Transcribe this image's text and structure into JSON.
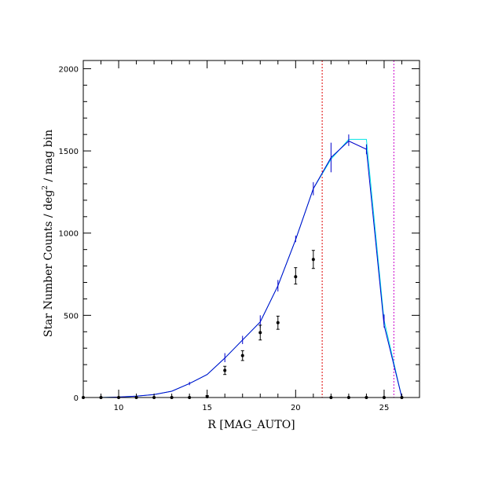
{
  "chart_data": {
    "type": "line",
    "title": "",
    "xlabel": "R [MAG_AUTO]",
    "ylabel_parts": {
      "main": "Star Number Counts / deg",
      "sup": "2",
      "tail": " / mag bin"
    },
    "xlim": [
      8,
      27
    ],
    "ylim": [
      0,
      2050
    ],
    "x_major_ticks": [
      10,
      15,
      20,
      25
    ],
    "y_major_ticks": [
      0,
      500,
      1000,
      1500,
      2000
    ],
    "x_tick_labels": [
      "10",
      "15",
      "20",
      "25"
    ],
    "y_tick_labels": [
      "0",
      "500",
      "1000",
      "1500",
      "2000"
    ],
    "grid": false,
    "series": [
      {
        "style": "line",
        "color": "#00e5e5",
        "x": [
          8,
          9,
          10,
          11,
          12,
          13,
          14,
          15,
          16,
          17,
          18,
          19,
          20,
          21,
          22,
          23,
          24,
          25,
          26
        ],
        "y": [
          0,
          0,
          3,
          8,
          18,
          38,
          85,
          140,
          240,
          350,
          460,
          680,
          960,
          1270,
          1450,
          1570,
          1570,
          470,
          0
        ]
      },
      {
        "style": "line",
        "color": "#0000cc",
        "x": [
          8,
          9,
          10,
          11,
          12,
          13,
          14,
          15,
          16,
          17,
          18,
          19,
          20,
          21,
          22,
          23,
          24,
          25,
          26
        ],
        "y": [
          0,
          0,
          3,
          8,
          18,
          38,
          85,
          140,
          240,
          350,
          460,
          680,
          960,
          1270,
          1460,
          1560,
          1510,
          440,
          0
        ]
      },
      {
        "style": "errorbars",
        "color": "#0000cc",
        "points": [
          {
            "x": 14,
            "lo": 75,
            "hi": 95
          },
          {
            "x": 16,
            "lo": 215,
            "hi": 270
          },
          {
            "x": 17,
            "lo": 325,
            "hi": 375
          },
          {
            "x": 18,
            "lo": 425,
            "hi": 500
          },
          {
            "x": 19,
            "lo": 645,
            "hi": 715
          },
          {
            "x": 20,
            "lo": 945,
            "hi": 985
          },
          {
            "x": 21,
            "lo": 1230,
            "hi": 1310
          },
          {
            "x": 22,
            "lo": 1370,
            "hi": 1550
          },
          {
            "x": 23,
            "lo": 1530,
            "hi": 1600
          },
          {
            "x": 24,
            "lo": 1480,
            "hi": 1540
          },
          {
            "x": 25,
            "lo": 425,
            "hi": 505
          }
        ]
      },
      {
        "style": "points",
        "color": "#000000",
        "points": [
          {
            "x": 8,
            "y": 0,
            "lo": 0,
            "hi": 0
          },
          {
            "x": 9,
            "y": 0,
            "lo": 0,
            "hi": 0
          },
          {
            "x": 10,
            "y": 0,
            "lo": 0,
            "hi": 0
          },
          {
            "x": 11,
            "y": 0,
            "lo": 0,
            "hi": 0
          },
          {
            "x": 12,
            "y": 0,
            "lo": 0,
            "hi": 0
          },
          {
            "x": 13,
            "y": 0,
            "lo": 0,
            "hi": 0
          },
          {
            "x": 14,
            "y": 0,
            "lo": 0,
            "hi": 0
          },
          {
            "x": 15,
            "y": 5,
            "lo": 0,
            "hi": 12
          },
          {
            "x": 16,
            "y": 165,
            "lo": 140,
            "hi": 190
          },
          {
            "x": 17,
            "y": 255,
            "lo": 225,
            "hi": 285
          },
          {
            "x": 18,
            "y": 395,
            "lo": 350,
            "hi": 440
          },
          {
            "x": 19,
            "y": 455,
            "lo": 415,
            "hi": 495
          },
          {
            "x": 20,
            "y": 735,
            "lo": 690,
            "hi": 790
          },
          {
            "x": 21,
            "y": 840,
            "lo": 785,
            "hi": 895
          },
          {
            "x": 22,
            "y": 0,
            "lo": 0,
            "hi": 0
          },
          {
            "x": 23,
            "y": 0,
            "lo": 0,
            "hi": 0
          },
          {
            "x": 24,
            "y": 0,
            "lo": 0,
            "hi": 0
          },
          {
            "x": 25,
            "y": 0,
            "lo": 0,
            "hi": 0
          },
          {
            "x": 26,
            "y": 0,
            "lo": 0,
            "hi": 0
          }
        ]
      }
    ],
    "vlines": [
      {
        "x": 21.5,
        "color": "#e00000"
      },
      {
        "x": 25.55,
        "color": "#cc00cc"
      }
    ]
  }
}
